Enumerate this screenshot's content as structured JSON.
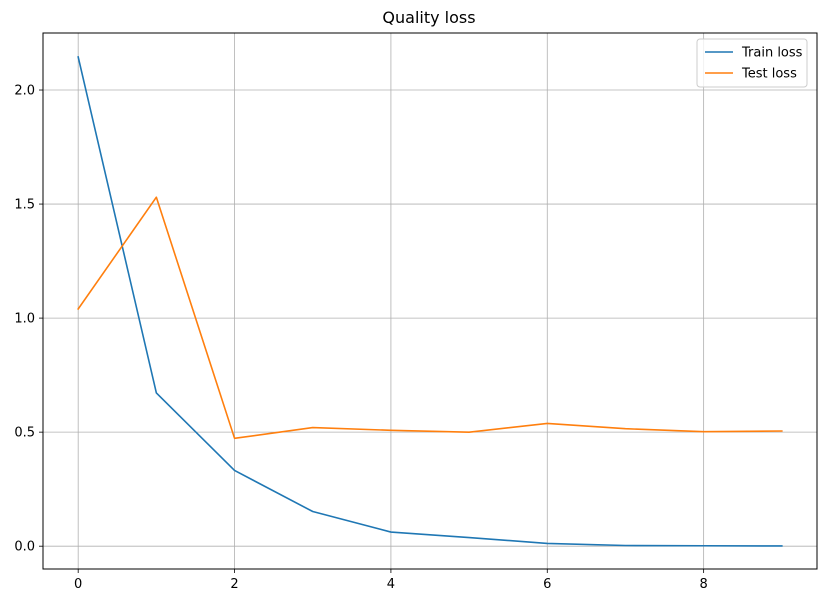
{
  "chart_data": {
    "type": "line",
    "title": "Quality loss",
    "xlabel": "",
    "ylabel": "",
    "x": [
      0,
      1,
      2,
      3,
      4,
      5,
      6,
      7,
      8,
      9
    ],
    "xlim": [
      -0.45,
      9.45
    ],
    "ylim": [
      -0.1,
      2.25
    ],
    "xticks": [
      0,
      2,
      4,
      6,
      8
    ],
    "yticks": [
      0.0,
      0.5,
      1.0,
      1.5,
      2.0
    ],
    "xtick_labels": [
      "0",
      "2",
      "4",
      "6",
      "8"
    ],
    "ytick_labels": [
      "0.0",
      "0.5",
      "1.0",
      "1.5",
      "2.0"
    ],
    "grid": true,
    "legend_position": "top-right",
    "series": [
      {
        "name": "Train loss",
        "color": "#1f77b4",
        "values": [
          2.145,
          0.672,
          0.332,
          0.152,
          0.062,
          0.038,
          0.012,
          0.003,
          0.002,
          0.001
        ]
      },
      {
        "name": "Test loss",
        "color": "#ff7f0e",
        "values": [
          1.04,
          1.53,
          0.473,
          0.52,
          0.508,
          0.5,
          0.538,
          0.515,
          0.502,
          0.505
        ]
      }
    ]
  }
}
